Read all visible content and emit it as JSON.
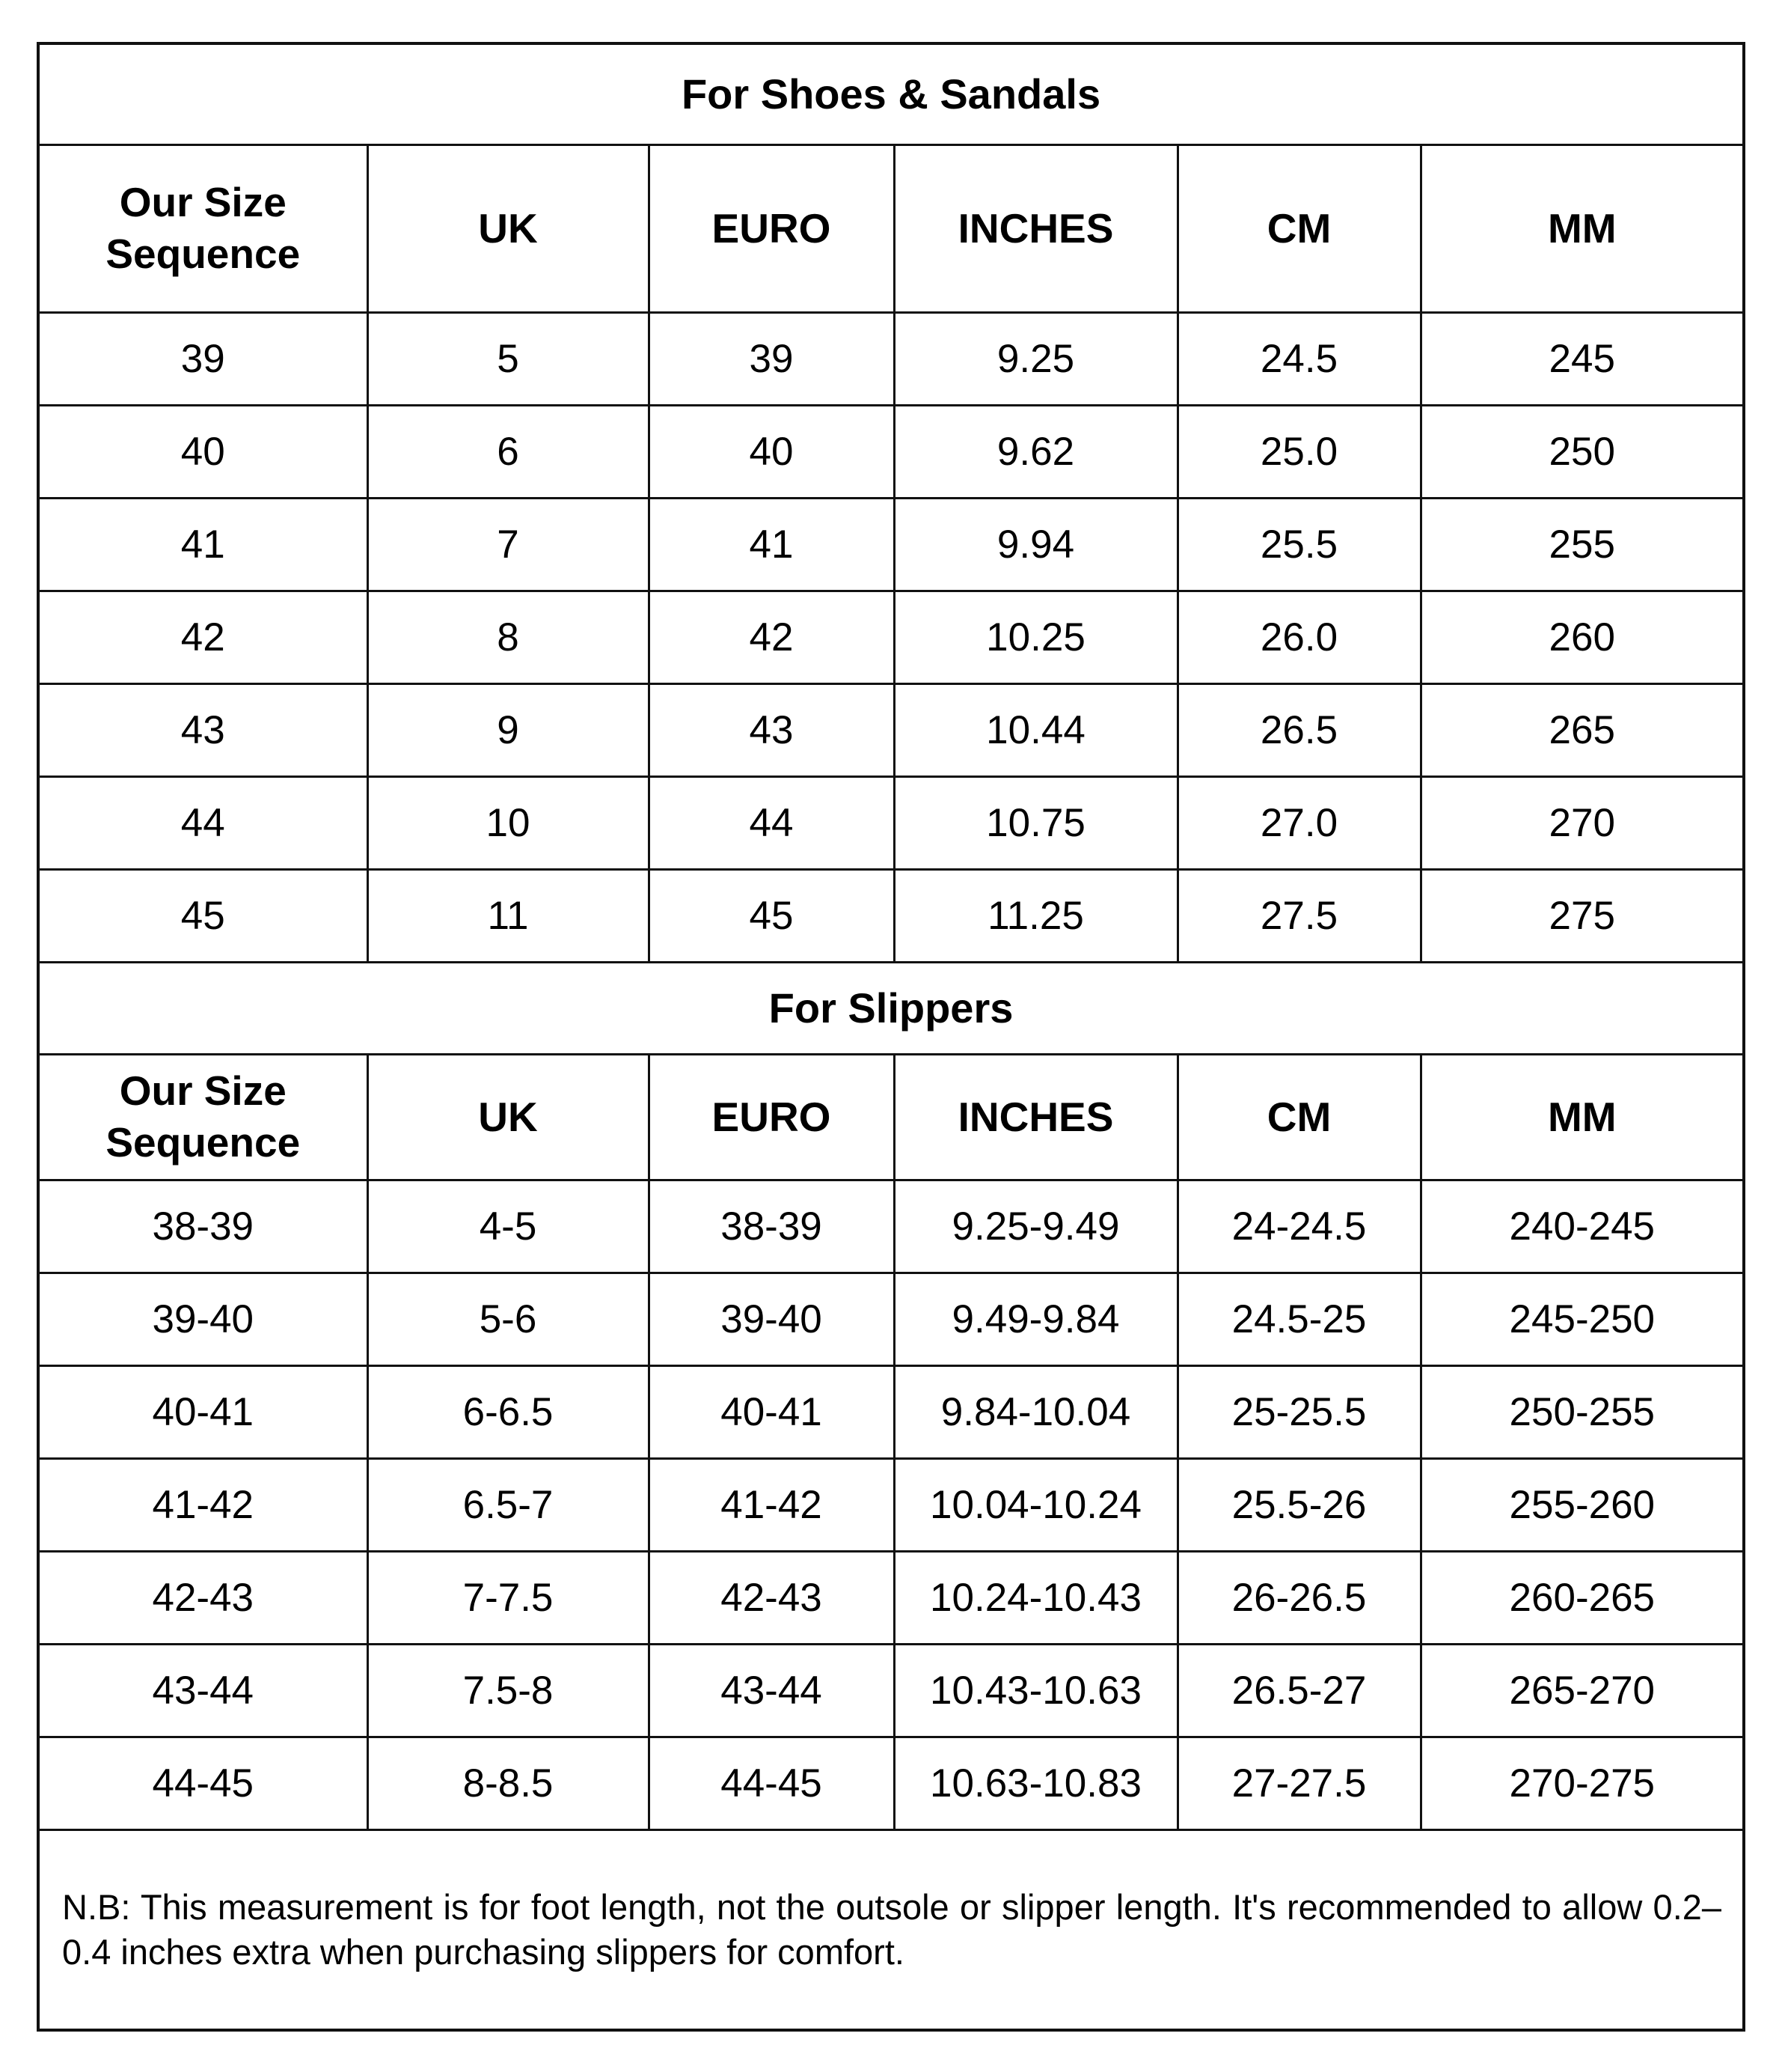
{
  "columns": [
    "Our Size Sequence",
    "UK",
    "EURO",
    "INCHES",
    "CM",
    "MM"
  ],
  "shoes": {
    "title": "For Shoes & Sandals",
    "rows": [
      [
        "39",
        "5",
        "39",
        "9.25",
        "24.5",
        "245"
      ],
      [
        "40",
        "6",
        "40",
        "9.62",
        "25.0",
        "250"
      ],
      [
        "41",
        "7",
        "41",
        "9.94",
        "25.5",
        "255"
      ],
      [
        "42",
        "8",
        "42",
        "10.25",
        "26.0",
        "260"
      ],
      [
        "43",
        "9",
        "43",
        "10.44",
        "26.5",
        "265"
      ],
      [
        "44",
        "10",
        "44",
        "10.75",
        "27.0",
        "270"
      ],
      [
        "45",
        "11",
        "45",
        "11.25",
        "27.5",
        "275"
      ]
    ]
  },
  "slippers": {
    "title": "For Slippers",
    "rows": [
      [
        "38-39",
        "4-5",
        "38-39",
        "9.25-9.49",
        "24-24.5",
        "240-245"
      ],
      [
        "39-40",
        "5-6",
        "39-40",
        "9.49-9.84",
        "24.5-25",
        "245-250"
      ],
      [
        "40-41",
        "6-6.5",
        "40-41",
        "9.84-10.04",
        "25-25.5",
        "250-255"
      ],
      [
        "41-42",
        "6.5-7",
        "41-42",
        "10.04-10.24",
        "25.5-26",
        "255-260"
      ],
      [
        "42-43",
        "7-7.5",
        "42-43",
        "10.24-10.43",
        "26-26.5",
        "260-265"
      ],
      [
        "43-44",
        "7.5-8",
        "43-44",
        "10.43-10.63",
        "26.5-27",
        "265-270"
      ],
      [
        "44-45",
        "8-8.5",
        "44-45",
        "10.63-10.83",
        "27-27.5",
        "270-275"
      ]
    ]
  },
  "note": "N.B: This measurement is for foot length, not the outsole or slipper length. It's recommended to allow 0.2–0.4 inches extra when purchasing slippers for comfort."
}
